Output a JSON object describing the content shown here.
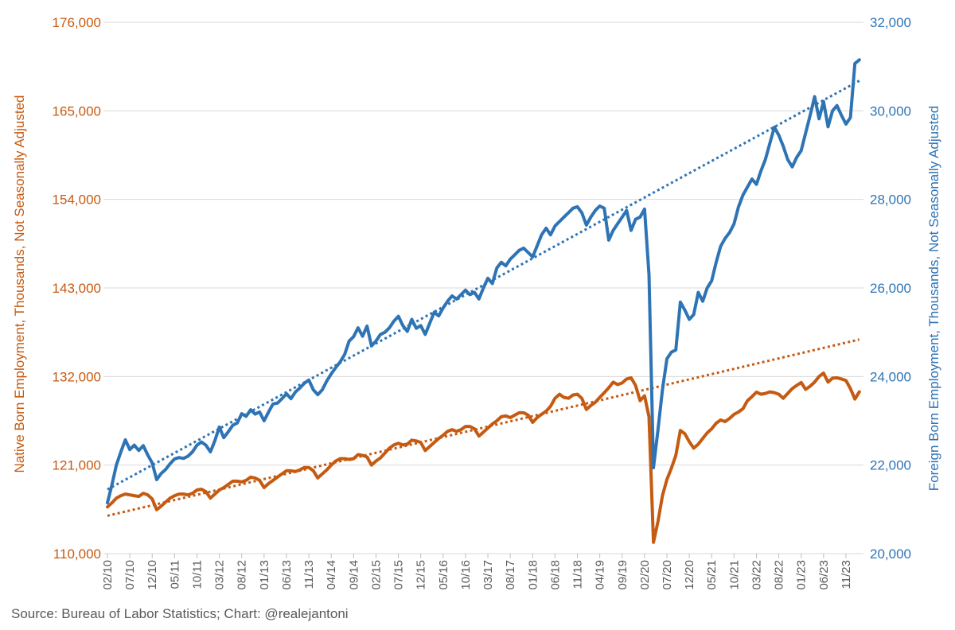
{
  "source_note": "Source: Bureau of Labor Statistics; Chart: @realejantoni",
  "colors": {
    "native": "#C55A11",
    "foreign": "#2E74B5",
    "grid": "#D9D9D9",
    "tick": "#BFBFBF",
    "x_label": "#595959",
    "source": "#595959"
  },
  "chart_data": {
    "type": "line",
    "title": "",
    "legend": "none",
    "grid": true,
    "n_points": 169,
    "x_start": "02/10",
    "x_end": "02/24",
    "x_label_every_n_months": 5,
    "x_tick_labels": [
      "02/10",
      "07/10",
      "12/10",
      "05/11",
      "10/11",
      "03/12",
      "08/12",
      "01/13",
      "06/13",
      "11/13",
      "04/14",
      "09/14",
      "02/15",
      "07/15",
      "12/15",
      "05/16",
      "10/16",
      "03/17",
      "08/17",
      "01/18",
      "06/18",
      "11/18",
      "04/19",
      "09/19",
      "02/20",
      "07/20",
      "12/20",
      "05/21",
      "10/21",
      "03/22",
      "08/22",
      "01/23",
      "06/23",
      "11/23"
    ],
    "left_axis": {
      "label": "Native Born Employment, Thousands, Not Seasonally Adjusted",
      "min": 110000,
      "max": 176000,
      "step": 11000,
      "tick_labels": [
        "110,000",
        "121,000",
        "132,000",
        "143,000",
        "154,000",
        "165,000",
        "176,000"
      ],
      "color": "#C55A11"
    },
    "right_axis": {
      "label": "Foreign Born Employment, Thousands, Not Seasonally Adjusted",
      "min": 20000,
      "max": 32000,
      "step": 2000,
      "tick_labels": [
        "20,000",
        "22,000",
        "24,000",
        "26,000",
        "28,000",
        "30,000",
        "32,000"
      ],
      "color": "#2E74B5"
    },
    "series": [
      {
        "name": "Native Born Employment",
        "axis": "left",
        "color": "#C55A11",
        "style": "solid",
        "trend": false,
        "values": [
          115800,
          116300,
          116900,
          117200,
          117400,
          117300,
          117200,
          117100,
          117500,
          117300,
          116800,
          115450,
          115900,
          116400,
          116900,
          117200,
          117400,
          117400,
          117300,
          117500,
          117900,
          118000,
          117700,
          116900,
          117400,
          117900,
          118200,
          118600,
          119000,
          119000,
          118900,
          119100,
          119500,
          119400,
          119100,
          118200,
          118700,
          119100,
          119500,
          119900,
          120300,
          120300,
          120200,
          120400,
          120700,
          120700,
          120300,
          119400,
          119900,
          120400,
          121000,
          121500,
          121800,
          121800,
          121700,
          121800,
          122300,
          122200,
          122000,
          121000,
          121500,
          121900,
          122500,
          123100,
          123500,
          123700,
          123500,
          123600,
          124100,
          124000,
          123800,
          122800,
          123300,
          123800,
          124300,
          124700,
          125200,
          125400,
          125200,
          125400,
          125800,
          125800,
          125500,
          124600,
          125100,
          125600,
          126100,
          126500,
          127000,
          127100,
          126900,
          127200,
          127500,
          127500,
          127200,
          126300,
          126900,
          127300,
          127700,
          128300,
          129300,
          129800,
          129400,
          129300,
          129700,
          129800,
          129300,
          127900,
          128400,
          128800,
          129400,
          130000,
          130600,
          131300,
          131000,
          131200,
          131700,
          131840,
          130900,
          129000,
          129600,
          127000,
          111400,
          114000,
          117200,
          119200,
          120600,
          122200,
          125300,
          124900,
          123900,
          123100,
          123600,
          124300,
          125000,
          125500,
          126200,
          126600,
          126400,
          126800,
          127300,
          127600,
          128000,
          129000,
          129500,
          130060,
          129800,
          129900,
          130100,
          130000,
          129800,
          129300,
          129900,
          130500,
          130900,
          131250,
          130400,
          130800,
          131300,
          132000,
          132430,
          131300,
          131800,
          131840,
          131700,
          131500,
          130500,
          129200,
          130100
        ]
      },
      {
        "name": "Native Born Linear Trend",
        "axis": "left",
        "color": "#C55A11",
        "style": "dotted",
        "trend": true,
        "values": [
          114700,
          136600
        ]
      },
      {
        "name": "Foreign Born Employment",
        "axis": "right",
        "color": "#2E74B5",
        "style": "solid",
        "trend": false,
        "values": [
          21150,
          21550,
          22000,
          22300,
          22570,
          22350,
          22450,
          22330,
          22440,
          22230,
          22050,
          21670,
          21810,
          21900,
          22030,
          22140,
          22170,
          22150,
          22200,
          22300,
          22450,
          22520,
          22450,
          22300,
          22550,
          22860,
          22620,
          22750,
          22900,
          22950,
          23160,
          23100,
          23250,
          23150,
          23200,
          23000,
          23200,
          23380,
          23400,
          23500,
          23610,
          23500,
          23650,
          23740,
          23850,
          23920,
          23700,
          23590,
          23700,
          23900,
          24060,
          24200,
          24330,
          24500,
          24800,
          24900,
          25100,
          24910,
          25140,
          24690,
          24800,
          24950,
          25000,
          25100,
          25250,
          25360,
          25150,
          25020,
          25290,
          25090,
          25150,
          24950,
          25200,
          25450,
          25370,
          25550,
          25700,
          25820,
          25750,
          25850,
          25950,
          25850,
          25900,
          25750,
          26000,
          26220,
          26100,
          26450,
          26580,
          26500,
          26650,
          26750,
          26850,
          26900,
          26800,
          26700,
          26950,
          27200,
          27350,
          27200,
          27400,
          27500,
          27600,
          27700,
          27800,
          27835,
          27700,
          27420,
          27600,
          27750,
          27850,
          27800,
          27080,
          27300,
          27450,
          27600,
          27750,
          27300,
          27550,
          27600,
          27780,
          26300,
          21940,
          22800,
          23700,
          24400,
          24550,
          24600,
          25680,
          25500,
          25290,
          25400,
          25900,
          25700,
          26000,
          26160,
          26580,
          26940,
          27120,
          27250,
          27450,
          27835,
          28100,
          28280,
          28460,
          28340,
          28640,
          28900,
          29270,
          29630,
          29450,
          29200,
          28900,
          28735,
          28950,
          29100,
          29500,
          29900,
          30320,
          29820,
          30210,
          29640,
          30000,
          30120,
          29900,
          29700,
          29850,
          31070,
          31150
        ]
      },
      {
        "name": "Foreign Born Linear Trend",
        "axis": "right",
        "color": "#2E74B5",
        "style": "dotted",
        "trend": true,
        "values": [
          21450,
          30680
        ]
      }
    ]
  }
}
